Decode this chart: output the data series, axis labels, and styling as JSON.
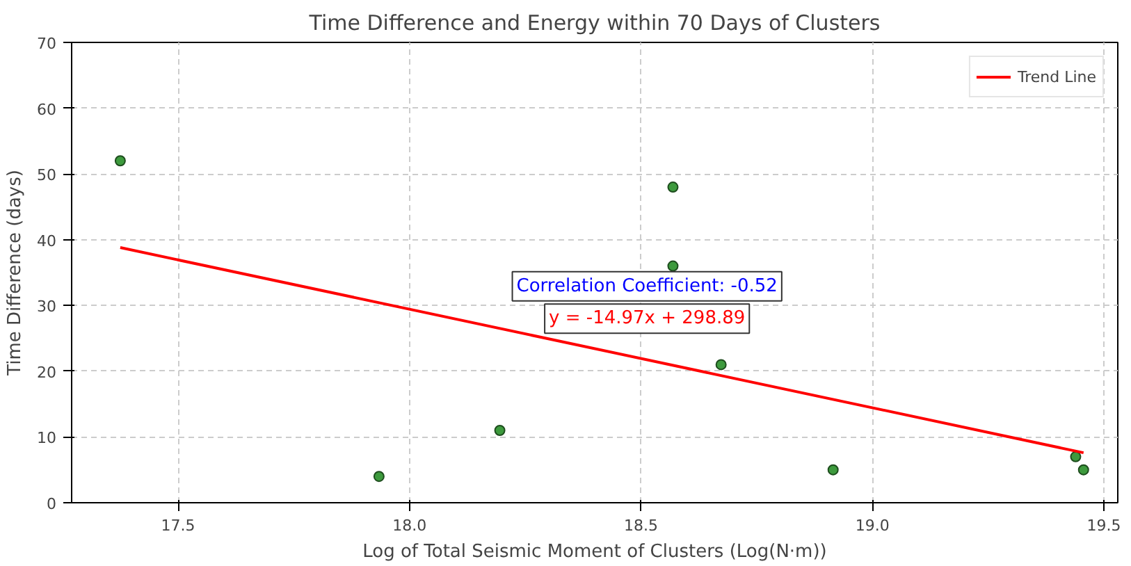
{
  "chart_data": {
    "type": "scatter",
    "title": "Time Difference and Energy within 70 Days of Clusters",
    "xlabel": "Log of Total Seismic Moment of Clusters (Log(N·m))",
    "ylabel": "Time Difference (days)",
    "xlim": [
      17.27,
      19.53
    ],
    "ylim": [
      0,
      70
    ],
    "xticks": [
      17.5,
      {
        "value": 18,
        "label": "18.0"
      },
      18.5,
      {
        "value": 19,
        "label": "19.0"
      },
      19.5
    ],
    "yticks": [
      0,
      10,
      20,
      30,
      40,
      50,
      60,
      70
    ],
    "grid": true,
    "legend": "top right",
    "series": [
      {
        "marker": "circle",
        "color": "#3d9a3d",
        "x": [
          17.375,
          17.934,
          18.195,
          18.569,
          18.569,
          18.673,
          18.915,
          19.439,
          19.456
        ],
        "values": [
          52,
          4,
          11,
          48,
          36,
          21,
          5,
          7,
          5
        ]
      },
      {
        "type": "line",
        "name": "Trend Line",
        "color": "#ff0000",
        "x": [
          17.375,
          19.456
        ],
        "values": [
          38.8,
          7.6
        ]
      }
    ],
    "annotations": [
      "Correlation Coefficient: -0.52",
      "y = -14.97x + 298.89"
    ]
  }
}
